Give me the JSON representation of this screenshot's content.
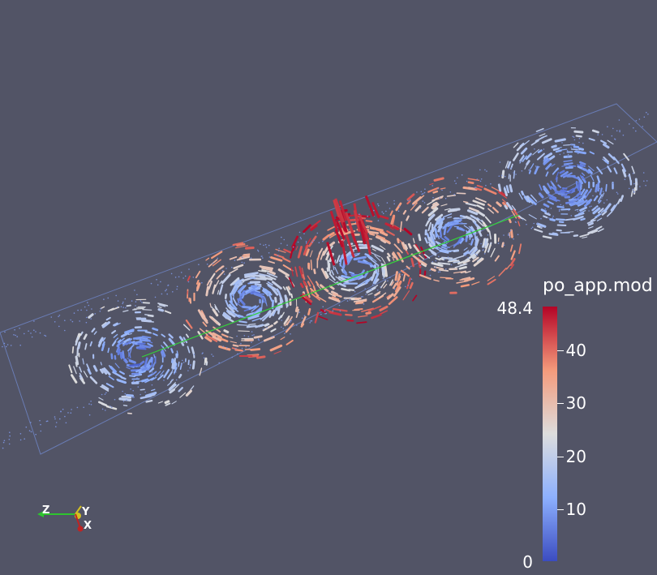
{
  "colorbar": {
    "title": "po_app.mod",
    "max_label": "48.4",
    "min_label": "0",
    "ticks": [
      "40",
      "30",
      "20",
      "10"
    ],
    "range": [
      0,
      48.4
    ],
    "colors": {
      "low": "#3b4cc0",
      "mid": "#dddddd",
      "high": "#b40426"
    }
  },
  "orientation_axes": {
    "z": "Z",
    "y": "Y",
    "x": "X"
  },
  "background": "#525466"
}
